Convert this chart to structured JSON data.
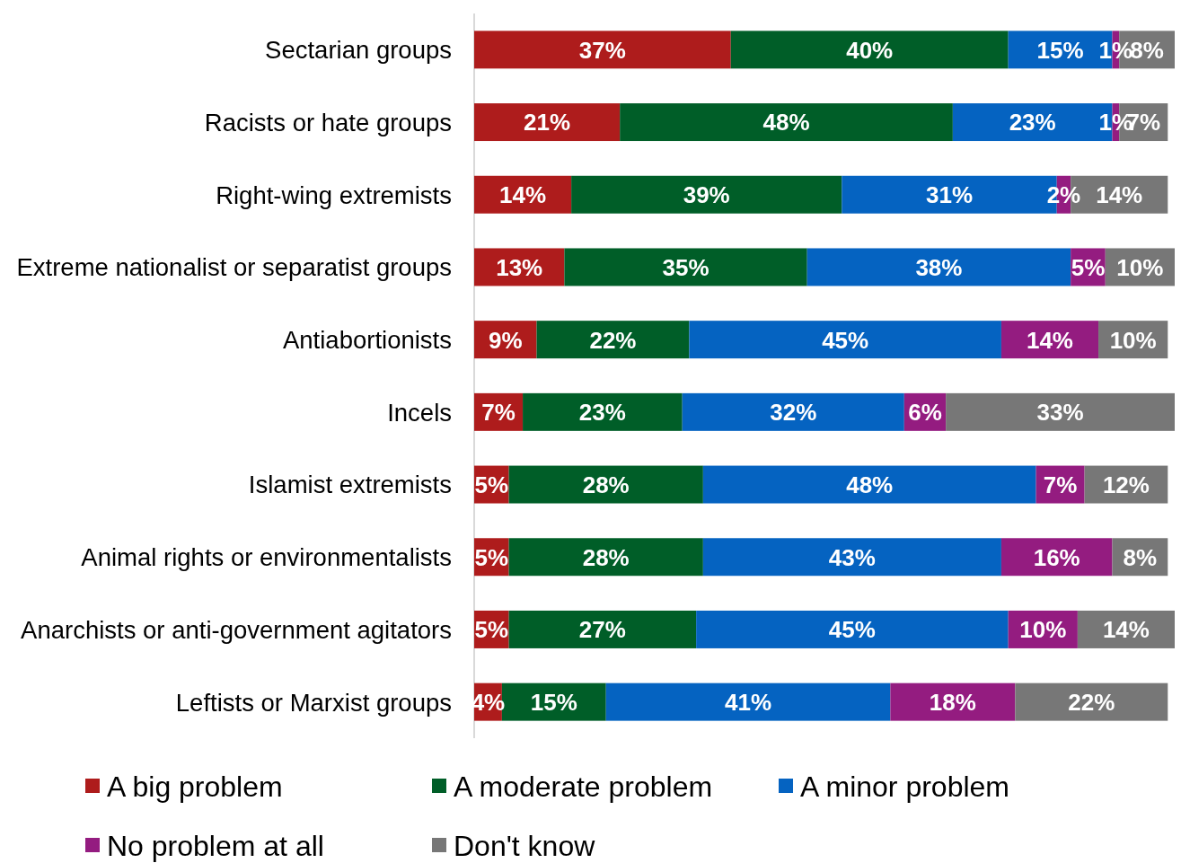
{
  "chart_data": {
    "type": "bar",
    "orientation": "horizontal",
    "stacked": true,
    "legend": "bottom",
    "categories": [
      "Sectarian groups",
      "Racists or hate groups",
      "Right-wing extremists",
      "Extreme nationalist or separatist groups",
      "Antiabortionists",
      "Incels",
      "Islamist extremists",
      "Animal rights or environmentalists",
      "Anarchists or anti-government agitators",
      "Leftists or Marxist groups"
    ],
    "series": [
      {
        "name": "A big problem",
        "color": "#ae1c1c",
        "values": [
          37,
          21,
          14,
          13,
          9,
          7,
          5,
          5,
          5,
          4
        ],
        "value_labels": [
          "37%",
          "21%",
          "14%",
          "13%",
          "9%",
          "7%",
          "5%",
          "5%",
          "5%",
          "4%"
        ]
      },
      {
        "name": "A moderate problem",
        "color": "#005e28",
        "values": [
          40,
          48,
          39,
          35,
          22,
          23,
          28,
          28,
          27,
          15
        ],
        "value_labels": [
          "40%",
          "48%",
          "39%",
          "35%",
          "22%",
          "23%",
          "28%",
          "28%",
          "27%",
          "15%"
        ]
      },
      {
        "name": "A minor problem",
        "color": "#0563c1",
        "values": [
          15,
          23,
          31,
          38,
          45,
          32,
          48,
          43,
          45,
          41
        ],
        "value_labels": [
          "15%",
          "23%",
          "31%",
          "38%",
          "45%",
          "32%",
          "48%",
          "43%",
          "45%",
          "41%"
        ]
      },
      {
        "name": "No problem at all",
        "color": "#941c80",
        "values": [
          1,
          1,
          2,
          5,
          14,
          6,
          7,
          16,
          10,
          18
        ],
        "value_labels": [
          "1%",
          "1%",
          "2%",
          "5%",
          "14%",
          "6%",
          "7%",
          "16%",
          "10%",
          "18%"
        ]
      },
      {
        "name": "Don't know",
        "color": "#777777",
        "values": [
          8,
          7,
          14,
          10,
          10,
          33,
          12,
          8,
          14,
          22
        ],
        "value_labels": [
          "8%",
          "7%",
          "14%",
          "10%",
          "10%",
          "33%",
          "12%",
          "8%",
          "14%",
          "22%"
        ]
      }
    ]
  }
}
